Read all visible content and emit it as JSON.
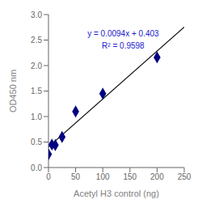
{
  "chart_data": {
    "type": "scatter",
    "xlabel": "Acetyl H3 control (ng)",
    "ylabel": "OD450 nm",
    "annotations": [
      {
        "text": "y = 0.0094x + 0.403",
        "color": "#1a1acd"
      },
      {
        "text": "R² = 0.9598",
        "color": "#1a1acd"
      }
    ],
    "series": [
      {
        "type": "line",
        "color": "#111111",
        "x": [
          0,
          250
        ],
        "values": [
          0.403,
          2.753
        ]
      },
      {
        "type": "scatter",
        "marker": "diamond",
        "color": "#000080",
        "x": [
          0,
          6.25,
          12.5,
          25,
          50,
          100,
          200
        ],
        "values": [
          0.26,
          0.45,
          0.44,
          0.6,
          1.1,
          1.45,
          2.16
        ]
      }
    ],
    "xlim": [
      0,
      250
    ],
    "ylim": [
      0,
      3
    ],
    "xticks": [
      0,
      50,
      100,
      150,
      200,
      250
    ],
    "yticks": [
      {
        "value": 0,
        "label": "0.0"
      },
      0.5,
      {
        "value": 1,
        "label": "1.0"
      },
      1.5,
      {
        "value": 2,
        "label": "2.0"
      },
      2.5,
      {
        "value": 3,
        "label": "3.0"
      }
    ],
    "grid": false
  }
}
